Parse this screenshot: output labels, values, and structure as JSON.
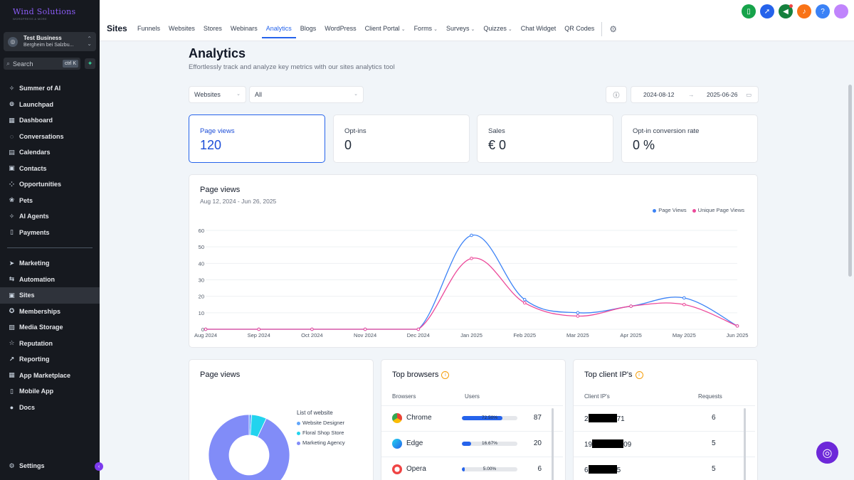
{
  "app": {
    "logo": "Wind Solutions",
    "logo_tagline": "WORDPRESS & MORE",
    "account_name": "Test Business",
    "account_location": "Bergheim bei Salzbu..."
  },
  "search": {
    "placeholder": "Search",
    "shortcut": "ctrl K"
  },
  "sidebar": {
    "items": [
      {
        "label": "Summer of AI",
        "icon": "sparkle-icon"
      },
      {
        "label": "Launchpad",
        "icon": "rocket-icon"
      },
      {
        "label": "Dashboard",
        "icon": "grid-icon"
      },
      {
        "label": "Conversations",
        "icon": "chat-icon"
      },
      {
        "label": "Calendars",
        "icon": "calendar-icon"
      },
      {
        "label": "Contacts",
        "icon": "contacts-icon"
      },
      {
        "label": "Opportunities",
        "icon": "opportunities-icon"
      },
      {
        "label": "Pets",
        "icon": "paw-icon"
      },
      {
        "label": "AI Agents",
        "icon": "sparkle-icon"
      },
      {
        "label": "Payments",
        "icon": "receipt-icon"
      }
    ],
    "items2": [
      {
        "label": "Marketing",
        "icon": "send-icon"
      },
      {
        "label": "Automation",
        "icon": "automation-icon"
      },
      {
        "label": "Sites",
        "icon": "globe-icon"
      },
      {
        "label": "Memberships",
        "icon": "award-icon"
      },
      {
        "label": "Media Storage",
        "icon": "image-icon"
      },
      {
        "label": "Reputation",
        "icon": "star-icon"
      },
      {
        "label": "Reporting",
        "icon": "chart-icon"
      },
      {
        "label": "App Marketplace",
        "icon": "apps-icon"
      },
      {
        "label": "Mobile App",
        "icon": "phone-icon"
      },
      {
        "label": "Docs",
        "icon": "info-icon"
      }
    ],
    "active": "Sites",
    "settings": "Settings"
  },
  "header": {
    "title": "Sites",
    "tabs": [
      {
        "label": "Funnels"
      },
      {
        "label": "Websites"
      },
      {
        "label": "Stores"
      },
      {
        "label": "Webinars"
      },
      {
        "label": "Analytics",
        "active": true
      },
      {
        "label": "Blogs"
      },
      {
        "label": "WordPress"
      },
      {
        "label": "Client Portal",
        "dropdown": true
      },
      {
        "label": "Forms",
        "dropdown": true
      },
      {
        "label": "Surveys",
        "dropdown": true
      },
      {
        "label": "Quizzes",
        "dropdown": true
      },
      {
        "label": "Chat Widget"
      },
      {
        "label": "QR Codes"
      }
    ],
    "top_icons": [
      {
        "name": "phone-icon",
        "color": "#16a34a"
      },
      {
        "name": "rocket-launch-icon",
        "color": "#2563eb"
      },
      {
        "name": "megaphone-icon",
        "color": "#15803d"
      },
      {
        "name": "bell-icon",
        "color": "#f97316"
      },
      {
        "name": "help-icon",
        "color": "#3b82f6"
      },
      {
        "name": "avatar",
        "color": "#c084fc"
      }
    ]
  },
  "page": {
    "title": "Analytics",
    "subtitle": "Effortlessly track and analyze key metrics with our sites analytics tool",
    "filter_type": "Websites",
    "filter_value": "All",
    "date_start": "2024-08-12",
    "date_end": "2025-06-26"
  },
  "stats": [
    {
      "label": "Page views",
      "value": "120"
    },
    {
      "label": "Opt-ins",
      "value": "0"
    },
    {
      "label": "Sales",
      "value": "€ 0"
    },
    {
      "label": "Opt-in conversion rate",
      "value": "0 %"
    }
  ],
  "page_views_card": {
    "title": "Page views",
    "subtitle": "Aug 12, 2024 - Jun 26, 2025"
  },
  "chart_data": [
    {
      "type": "line",
      "categories": [
        "Aug 2024",
        "Sep 2024",
        "Oct 2024",
        "Nov 2024",
        "Dec 2024",
        "Jan 2025",
        "Feb 2025",
        "Mar 2025",
        "Apr 2025",
        "May 2025",
        "Jun 2025"
      ],
      "series": [
        {
          "name": "Page Views",
          "color": "#3b82f6",
          "values": [
            0,
            0,
            0,
            0,
            0,
            57,
            18,
            10,
            14,
            19,
            2
          ]
        },
        {
          "name": "Unique Page Views",
          "color": "#ec4899",
          "values": [
            0,
            0,
            0,
            0,
            0,
            43,
            16,
            8,
            14,
            15,
            2
          ]
        }
      ],
      "yticks": [
        "0",
        "10",
        "20",
        "30",
        "40",
        "50",
        "60"
      ],
      "ylim": [
        0,
        60
      ],
      "legend": "top-right",
      "grid": true
    },
    {
      "type": "pie",
      "legend_title": "List of website",
      "labels": [
        "Website Designer",
        "Floral Shop Store",
        "Marketing Agency"
      ],
      "colors": [
        "#60a5fa",
        "#22d3ee",
        "#818cf8"
      ],
      "values": [
        1,
        6,
        93
      ]
    }
  ],
  "pie_card": {
    "title": "Page views"
  },
  "browsers": {
    "title": "Top browsers",
    "col_browser": "Browsers",
    "col_users": "Users",
    "rows": [
      {
        "name": "Chrome",
        "pct_label": "72.50%",
        "pct": 72.5,
        "count": "87",
        "icon": "chrome-icon"
      },
      {
        "name": "Edge",
        "pct_label": "16.67%",
        "pct": 16.67,
        "count": "20",
        "icon": "edge-icon"
      },
      {
        "name": "Opera",
        "pct_label": "5.00%",
        "pct": 5,
        "count": "6",
        "icon": "opera-icon"
      }
    ]
  },
  "ips": {
    "title": "Top client IP's",
    "col_ip": "Client IP's",
    "col_requests": "Requests",
    "rows": [
      {
        "prefix": "2",
        "suffix": "71",
        "requests": "6"
      },
      {
        "prefix": "19",
        "suffix": "09",
        "requests": "5"
      },
      {
        "prefix": "6",
        "suffix": "5",
        "requests": "5"
      }
    ]
  }
}
